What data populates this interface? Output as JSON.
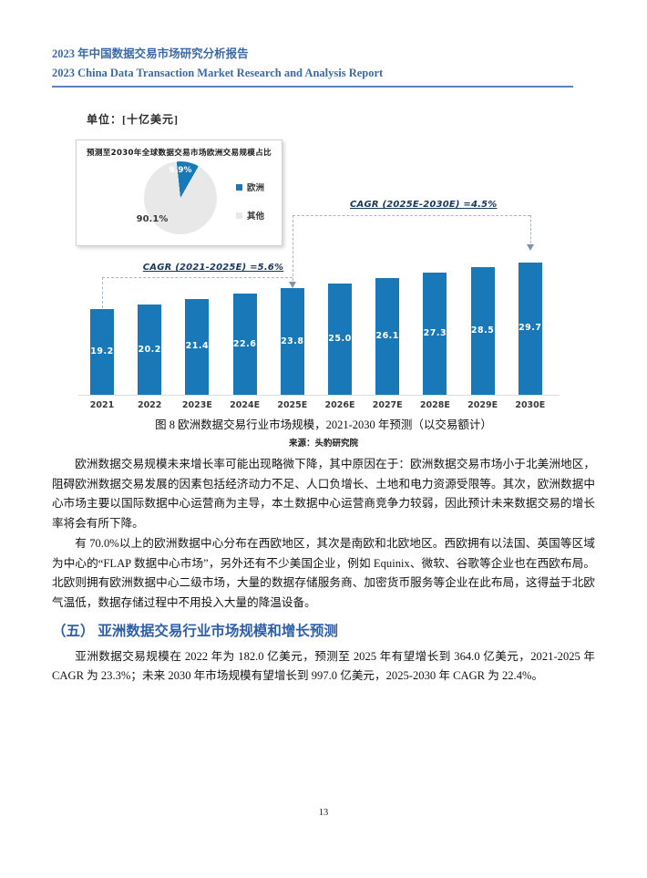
{
  "header": {
    "title_zh": "2023 年中国数据交易市场研究分析报告",
    "title_en": "2023 China Data Transaction Market Research and Analysis Report"
  },
  "figure": {
    "unit_label": "单位：[十亿美元]",
    "inset_title": "预测至2030年全球数据交易市场欧洲交易规模占比",
    "pie_europe_label": "9.9%",
    "pie_other_label": "90.1%",
    "cagr_left": "CAGR (2021-2025E) =5.6%",
    "cagr_right": "CAGR (2025E-2030E) =4.5%",
    "caption": "图 8 欧洲数据交易行业市场规模，2021-2030 年预测（以交易额计）",
    "source": "来源：头豹研究院"
  },
  "chart_data": [
    {
      "type": "bar",
      "title": "欧洲数据交易行业市场规模，2021-2030年预测（以交易额计）",
      "unit": "十亿美元",
      "categories": [
        "2021",
        "2022",
        "2023E",
        "2024E",
        "2025E",
        "2026E",
        "2027E",
        "2028E",
        "2029E",
        "2030E"
      ],
      "values": [
        19.2,
        20.2,
        21.4,
        22.6,
        23.8,
        25.0,
        26.1,
        27.3,
        28.5,
        29.7
      ],
      "bar_color": "#1878B8",
      "value_label_color": "#FFFFFF",
      "ylim": [
        0,
        32
      ],
      "grid": false,
      "annotations": [
        {
          "text": "CAGR (2021-2025E) =5.6%",
          "from": "2021",
          "to": "2025E"
        },
        {
          "text": "CAGR (2025E-2030E) =4.5%",
          "from": "2025E",
          "to": "2030E"
        }
      ]
    },
    {
      "type": "pie",
      "title": "预测至2030年全球数据交易市场欧洲交易规模占比",
      "slices": [
        {
          "label": "欧洲",
          "value": 9.9,
          "display": "9.9%",
          "color": "#1878B8"
        },
        {
          "label": "其他",
          "value": 90.1,
          "display": "90.1%",
          "color": "#E8E8E8"
        }
      ],
      "legend_position": "right"
    }
  ],
  "paragraphs": {
    "p1": "欧洲数据交易规模未来增长率可能出现略微下降，其中原因在于：欧洲数据交易市场小于北美洲地区，阻碍欧洲数据交易发展的因素包括经济动力不足、人口负增长、土地和电力资源受限等。其次，欧洲数据中心市场主要以国际数据中心运营商为主导，本土数据中心运营商竞争力较弱，因此预计未来数据交易的增长率将会有所下降。",
    "p2": "有 70.0%以上的欧洲数据中心分布在西欧地区，其次是南欧和北欧地区。西欧拥有以法国、英国等区域为中心的“FLAP  数据中心市场”，另外还有不少美国企业，例如 Equinix、微软、谷歌等企业也在西欧布局。北欧则拥有欧洲数据中心二级市场，大量的数据存储服务商、加密货币服务等企业在此布局，这得益于北欧气温低，数据存储过程中不用投入大量的降温设备。",
    "p3": "亚洲数据交易规模在 2022 年为 182.0 亿美元，预测至 2025 年有望增长到 364.0 亿美元，2021-2025 年 CAGR 为 23.3%；未来 2030 年市场规模有望增长到 997.0 亿美元，2025-2030 年 CAGR 为 22.4%。"
  },
  "section": {
    "heading": "（五） 亚洲数据交易行业市场规模和增长预测"
  },
  "footer": {
    "page_number": "13"
  }
}
